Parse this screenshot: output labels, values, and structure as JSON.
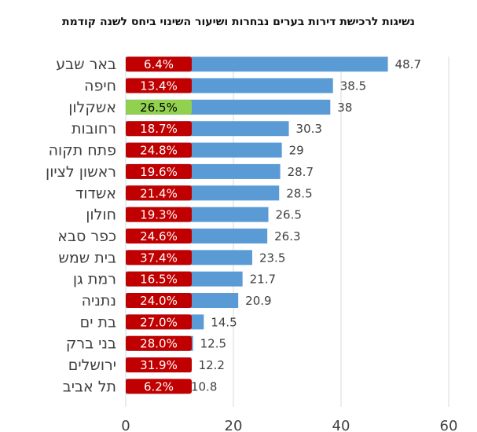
{
  "chart_data": {
    "type": "bar",
    "orientation": "horizontal",
    "title": "נשיגות לרכישת דירות בערים נבחרות ושיעור השינוי ביחס לשנה קודמת",
    "xlabel": "",
    "ylabel": "",
    "xlim": [
      0,
      60
    ],
    "xticks": [
      "0",
      "20",
      "40",
      "60"
    ],
    "grid": true,
    "legend": "none",
    "categories": [
      "באר שבע",
      "חיפה",
      "אשקלון",
      "רחובות",
      "פתח תקוה",
      "ראשון לציון",
      "אשדוד",
      "חולון",
      "כפר סבא",
      "בית שמש",
      "רמת גן",
      "נתניה",
      "בת ים",
      "בני ברק",
      "ירושלים",
      "תל אביב"
    ],
    "values": [
      48.7,
      38.5,
      38,
      30.3,
      29,
      28.7,
      28.5,
      26.5,
      26.3,
      23.5,
      21.7,
      20.9,
      14.5,
      12.5,
      12.2,
      10.8
    ],
    "value_labels": [
      "48.7",
      "38.5",
      "38",
      "30.3",
      "29",
      "28.7",
      "28.5",
      "26.5",
      "26.3",
      "23.5",
      "21.7",
      "20.9",
      "14.5",
      "12.5",
      "12.2",
      "10.8"
    ],
    "change_labels": [
      "6.4%",
      "13.4%",
      "26.5%",
      "18.7%",
      "24.8%",
      "19.6%",
      "21.4%",
      "19.3%",
      "24.6%",
      "37.4%",
      "16.5%",
      "24.0%",
      "27.0%",
      "28.0%",
      "31.9%",
      "6.2%"
    ],
    "highlight_index": 2,
    "colors": {
      "bar": "#5B9BD5",
      "change_box": "#C00000",
      "change_box_highlight": "#92D050",
      "change_text": "#ffffff",
      "change_text_highlight": "#000000",
      "grid": "#d9d9d9",
      "text": "#404040"
    }
  }
}
